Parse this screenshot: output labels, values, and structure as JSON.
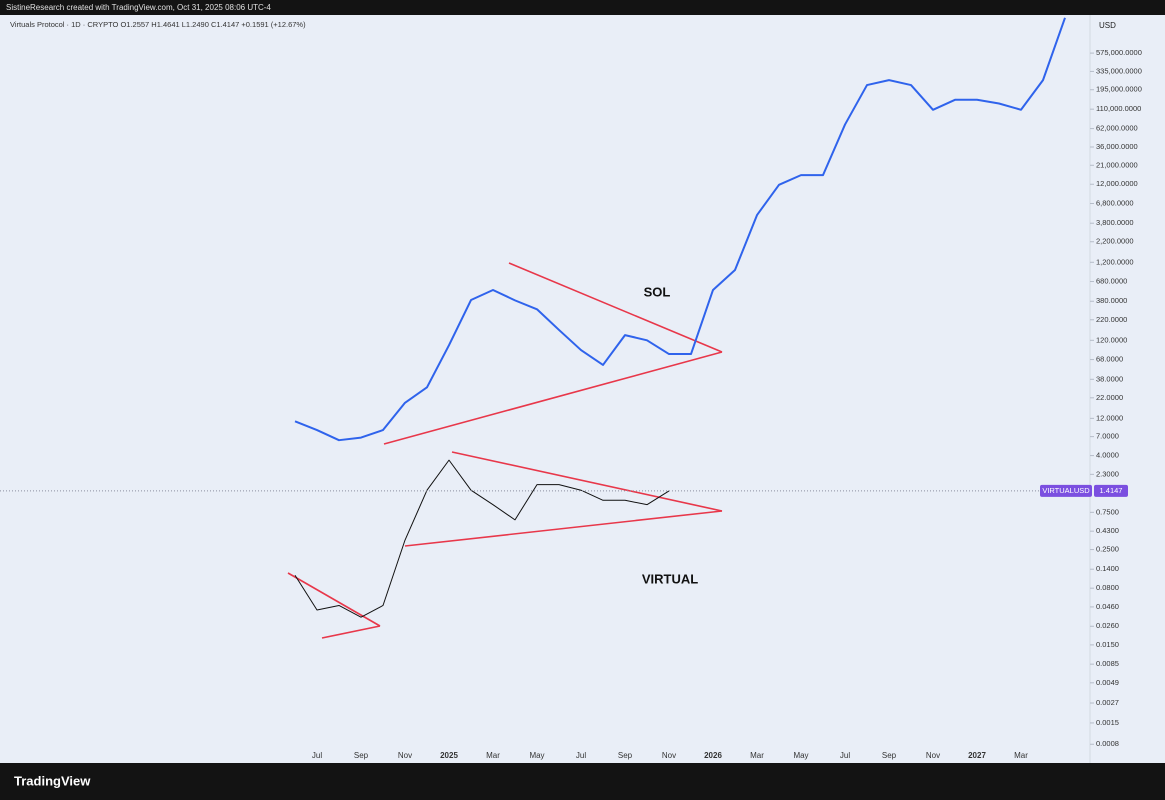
{
  "header": "SistineResearch created with TradingView.com, Oct 31, 2025 08:06 UTC-4",
  "brand": "TradingView",
  "chart_data": {
    "type": "line",
    "title": "Virtuals Protocol · 1D · CRYPTO  O1.2557  H1.4641  L1.2490  C1.4147  +0.1591 (+12.67%)",
    "currency": "USD",
    "symbol": "VIRTUALUSD",
    "last_price": 1.4147,
    "annotations": [
      "SOL",
      "VIRTUAL"
    ],
    "log_scale": true,
    "categories": [
      null,
      "Jul",
      null,
      "Sep",
      null,
      "Nov",
      null,
      "2025",
      null,
      "Mar",
      null,
      "May",
      null,
      "Jul",
      null,
      "Sep",
      null,
      "Nov",
      null,
      "2026",
      null,
      "Mar",
      null,
      "May",
      null,
      "Jul",
      null,
      "Sep",
      null,
      "Nov",
      null,
      "2027",
      null,
      "Mar",
      null,
      null
    ],
    "series": [
      {
        "name": "SOL",
        "color": "#2f63ec",
        "values": [
          11,
          8.5,
          6.3,
          6.8,
          8.5,
          19,
          30,
          104,
          394,
          530,
          390,
          300,
          163,
          90,
          58,
          140,
          120,
          80,
          80,
          530,
          955,
          4830,
          11800,
          15700,
          15700,
          69800,
          224000,
          259000,
          224000,
          108000,
          145000,
          145000,
          130000,
          108000,
          259000,
          1630000
        ]
      },
      {
        "name": "VIRTUAL",
        "color": "#111111",
        "values": [
          0.117,
          0.042,
          0.048,
          0.034,
          0.048,
          0.33,
          1.44,
          3.5,
          1.44,
          0.94,
          0.6,
          1.7,
          1.7,
          1.44,
          1.07,
          1.07,
          0.94,
          1.41,
          null,
          null,
          null,
          null,
          null,
          null,
          null,
          null,
          null,
          null,
          null,
          null,
          null,
          null,
          null,
          null,
          null,
          null
        ]
      }
    ],
    "ylim": [
      0.00046,
      1770000
    ],
    "yticks": [
      {
        "value": 575000,
        "label": "575,000.0000"
      },
      {
        "value": 335000,
        "label": "335,000.0000"
      },
      {
        "value": 195000,
        "label": "195,000.0000"
      },
      {
        "value": 110000,
        "label": "110,000.0000"
      },
      {
        "value": 62000,
        "label": "62,000.0000"
      },
      {
        "value": 36000,
        "label": "36,000.0000"
      },
      {
        "value": 21000,
        "label": "21,000.0000"
      },
      {
        "value": 12000,
        "label": "12,000.0000"
      },
      {
        "value": 6800,
        "label": "6,800.0000"
      },
      {
        "value": 3800,
        "label": "3,800.0000"
      },
      {
        "value": 2200,
        "label": "2,200.0000"
      },
      {
        "value": 1200,
        "label": "1,200.0000"
      },
      {
        "value": 680,
        "label": "680.0000"
      },
      {
        "value": 380,
        "label": "380.0000"
      },
      {
        "value": 220,
        "label": "220.0000"
      },
      {
        "value": 120,
        "label": "120.0000"
      },
      {
        "value": 68,
        "label": "68.0000"
      },
      {
        "value": 38,
        "label": "38.0000"
      },
      {
        "value": 22,
        "label": "22.0000"
      },
      {
        "value": 12,
        "label": "12.0000"
      },
      {
        "value": 7,
        "label": "7.0000"
      },
      {
        "value": 4,
        "label": "4.0000"
      },
      {
        "value": 2.3,
        "label": "2.3000"
      },
      {
        "value": 0.75,
        "label": "0.7500"
      },
      {
        "value": 0.43,
        "label": "0.4300"
      },
      {
        "value": 0.25,
        "label": "0.2500"
      },
      {
        "value": 0.14,
        "label": "0.1400"
      },
      {
        "value": 0.08,
        "label": "0.0800"
      },
      {
        "value": 0.046,
        "label": "0.0460"
      },
      {
        "value": 0.026,
        "label": "0.0260"
      },
      {
        "value": 0.015,
        "label": "0.0150"
      },
      {
        "value": 0.0085,
        "label": "0.0085"
      },
      {
        "value": 0.0049,
        "label": "0.0049"
      },
      {
        "value": 0.0027,
        "label": "0.0027"
      },
      {
        "value": 0.0015,
        "label": "0.0015"
      },
      {
        "value": 0.0008,
        "label": "0.0008"
      }
    ]
  }
}
